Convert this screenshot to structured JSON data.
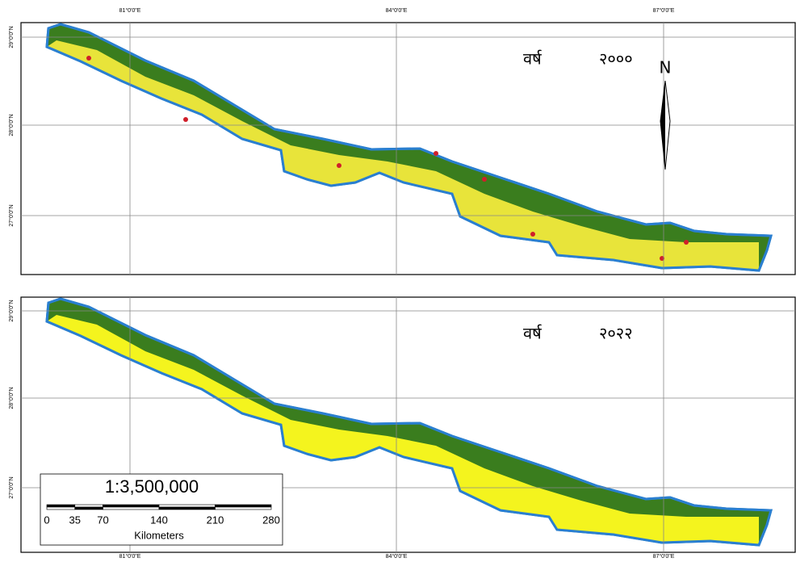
{
  "top_lon_labels": [
    "81°0'0\"E",
    "84°0'0\"E",
    "87°0'0\"E"
  ],
  "bottom_lon_labels": [
    "81°0'0\"E",
    "84°0'0\"E",
    "87°0'0\"E"
  ],
  "panels": [
    {
      "year_word": "वर्ष",
      "year": "२०००",
      "lat_labels": [
        "29°0'0\"N",
        "28°0'0\"N",
        "27°0'0\"N"
      ]
    },
    {
      "year_word": "वर्ष",
      "year": "२०२२",
      "lat_labels": [
        "29°0'0\"N",
        "28°0'0\"N",
        "27°0'0\"N"
      ]
    }
  ],
  "north_arrow": "N",
  "scale": {
    "ratio": "1:3,500,000",
    "ticks": [
      0,
      35,
      70,
      140,
      210,
      280
    ],
    "unit": "Kilometers"
  }
}
